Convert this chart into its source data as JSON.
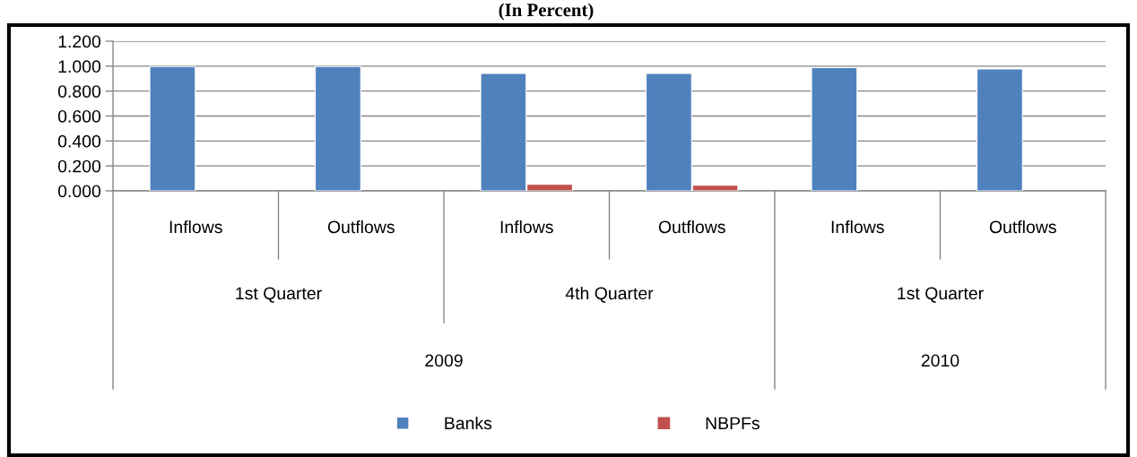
{
  "chart_data": {
    "type": "bar",
    "title": "(In Percent)",
    "categories": [
      "Inflows",
      "Outflows",
      "Inflows",
      "Outflows",
      "Inflows",
      "Outflows"
    ],
    "series": [
      {
        "name": "Banks",
        "color": "#4f81bd",
        "values": [
          0.997,
          0.997,
          0.942,
          0.942,
          0.988,
          0.978
        ]
      },
      {
        "name": "NBPFs",
        "color": "#c0504d",
        "values": [
          0,
          0,
          0.052,
          0.045,
          0,
          0
        ]
      }
    ],
    "ylim": [
      0,
      1.2
    ],
    "yticks": [
      {
        "value": 0,
        "label": "0.000"
      },
      {
        "value": 0.2,
        "label": "0.200"
      },
      {
        "value": 0.4,
        "label": "0.400"
      },
      {
        "value": 0.6,
        "label": "0.600"
      },
      {
        "value": 0.8,
        "label": "0.800"
      },
      {
        "value": 1.0,
        "label": "1.000"
      },
      {
        "value": 1.2,
        "label": "1.200"
      }
    ],
    "grid": "y",
    "legend": "bottom",
    "annotations": [
      "1st Quarter",
      "4th Quarter",
      "1st Quarter",
      "2009",
      "2010"
    ]
  }
}
